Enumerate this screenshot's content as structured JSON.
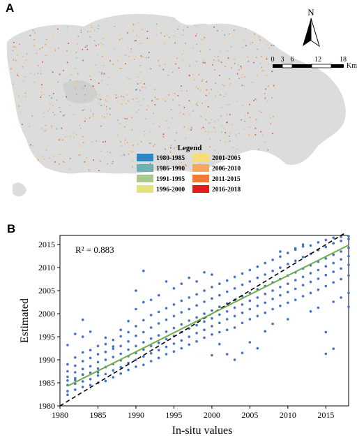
{
  "panels": {
    "a": {
      "label": "A",
      "legend_title": "Legend",
      "legend_items": [
        {
          "label": "1980-1985",
          "color": "#2e86c1"
        },
        {
          "label": "1986-1990",
          "color": "#6fb0b0"
        },
        {
          "label": "1991-1995",
          "color": "#a9c98d"
        },
        {
          "label": "1996-2000",
          "color": "#e2e27f"
        },
        {
          "label": "2001-2005",
          "color": "#f7dd73"
        },
        {
          "label": "2006-2010",
          "color": "#f5a95a"
        },
        {
          "label": "2011-2015",
          "color": "#f07a37"
        },
        {
          "label": "2016-2018",
          "color": "#e31a1c"
        }
      ],
      "north_label": "N",
      "scale_ticks": [
        "0",
        "3",
        "6",
        "12",
        "18"
      ],
      "scale_unit": "Km",
      "region_color": "#dcdcdc"
    },
    "b": {
      "label": "B"
    }
  },
  "chart_data": {
    "type": "scatter",
    "xlabel": "In-situ values",
    "ylabel": "Estimated",
    "xlim": [
      1980,
      2018
    ],
    "ylim": [
      1980,
      2017
    ],
    "x_ticks": [
      1980,
      1985,
      1990,
      1995,
      2000,
      2005,
      2010,
      2015
    ],
    "y_ticks": [
      1980,
      1985,
      1990,
      1995,
      2000,
      2005,
      2010,
      2015
    ],
    "annotation": "R² = 0.883",
    "point_color": "#4472c4",
    "fit_line": {
      "x": [
        1981,
        2018
      ],
      "y": [
        1984.3,
        2014.9
      ],
      "color": "#70ad47"
    },
    "identity_line": {
      "x": [
        1980,
        2017.5
      ],
      "y": [
        1980,
        2017.5
      ]
    },
    "series": [
      {
        "values": [
          [
            1981,
            1985.5
          ],
          [
            1981,
            1986.3
          ],
          [
            1981,
            1984.5
          ],
          [
            1981,
            1983.2
          ],
          [
            1981,
            1982.4
          ],
          [
            1981,
            1987.5
          ],
          [
            1981,
            1989.0
          ],
          [
            1981,
            1993.2
          ],
          [
            1982,
            1986.0
          ],
          [
            1982,
            1987.3
          ],
          [
            1982,
            1984.8
          ],
          [
            1982,
            1983.5
          ],
          [
            1982,
            1988.7
          ],
          [
            1982,
            1990.5
          ],
          [
            1982,
            1995.6
          ],
          [
            1982,
            1985.6
          ],
          [
            1983,
            1986.8
          ],
          [
            1983,
            1988.0
          ],
          [
            1983,
            1985.3
          ],
          [
            1983,
            1984.1
          ],
          [
            1983,
            1989.7
          ],
          [
            1983,
            1991.6
          ],
          [
            1983,
            1998.7
          ],
          [
            1983,
            1995.0
          ],
          [
            1984,
            1987.2
          ],
          [
            1984,
            1988.6
          ],
          [
            1984,
            1985.8
          ],
          [
            1984,
            1990.4
          ],
          [
            1984,
            1992.1
          ],
          [
            1984,
            1996.1
          ],
          [
            1984,
            1984.5
          ],
          [
            1985,
            1988.1
          ],
          [
            1985,
            1989.5
          ],
          [
            1985,
            1986.6
          ],
          [
            1985,
            1991.2
          ],
          [
            1985,
            1993.0
          ],
          [
            1985,
            1985.0
          ],
          [
            1985,
            1987.3
          ],
          [
            1986,
            1988.4
          ],
          [
            1986,
            1990.0
          ],
          [
            1986,
            1986.9
          ],
          [
            1986,
            1991.7
          ],
          [
            1986,
            1993.4
          ],
          [
            1986,
            1994.8
          ],
          [
            1986,
            1985.4
          ],
          [
            1987,
            1989.1
          ],
          [
            1987,
            1990.6
          ],
          [
            1987,
            1987.7
          ],
          [
            1987,
            1992.4
          ],
          [
            1987,
            1994.3
          ],
          [
            1987,
            1986.2
          ],
          [
            1987,
            1992.9
          ],
          [
            1988,
            1989.9
          ],
          [
            1988,
            1991.3
          ],
          [
            1988,
            1988.4
          ],
          [
            1988,
            1993.0
          ],
          [
            1988,
            1995.1
          ],
          [
            1988,
            1987.0
          ],
          [
            1988,
            1996.5
          ],
          [
            1989,
            1990.8
          ],
          [
            1989,
            1992.2
          ],
          [
            1989,
            1989.3
          ],
          [
            1989,
            1994.0
          ],
          [
            1989,
            1996.0
          ],
          [
            1989,
            1987.8
          ],
          [
            1989,
            1998.4
          ],
          [
            1990,
            1991.5
          ],
          [
            1990,
            1993.0
          ],
          [
            1990,
            1990.0
          ],
          [
            1990,
            1995.2
          ],
          [
            1990,
            1997.3
          ],
          [
            1990,
            1988.5
          ],
          [
            1990,
            2001.0
          ],
          [
            1990,
            2005.0
          ],
          [
            1991,
            1992.2
          ],
          [
            1991,
            1993.8
          ],
          [
            1991,
            1990.7
          ],
          [
            1991,
            1996.0
          ],
          [
            1991,
            1998.6
          ],
          [
            1991,
            1988.9
          ],
          [
            1991,
            2009.3
          ],
          [
            1991,
            2002.5
          ],
          [
            1992,
            1993.0
          ],
          [
            1992,
            1994.6
          ],
          [
            1992,
            1991.4
          ],
          [
            1992,
            1997.0
          ],
          [
            1992,
            1999.7
          ],
          [
            1992,
            1989.7
          ],
          [
            1992,
            2003.0
          ],
          [
            1993,
            1993.7
          ],
          [
            1993,
            1995.3
          ],
          [
            1993,
            1992.1
          ],
          [
            1993,
            1997.9
          ],
          [
            1993,
            2000.4
          ],
          [
            1993,
            1990.4
          ],
          [
            1993,
            2004.0
          ],
          [
            1994,
            1994.5
          ],
          [
            1994,
            1996.1
          ],
          [
            1994,
            1992.8
          ],
          [
            1994,
            1998.7
          ],
          [
            1994,
            2001.2
          ],
          [
            1994,
            1991.2
          ],
          [
            1994,
            2007.0
          ],
          [
            1995,
            1995.2
          ],
          [
            1995,
            1996.9
          ],
          [
            1995,
            1993.5
          ],
          [
            1995,
            1999.5
          ],
          [
            1995,
            2002.0
          ],
          [
            1995,
            1991.8
          ],
          [
            1995,
            2005.5
          ],
          [
            1996,
            1996.0
          ],
          [
            1996,
            1997.7
          ],
          [
            1996,
            1994.2
          ],
          [
            1996,
            2000.3
          ],
          [
            1996,
            2002.8
          ],
          [
            1996,
            1992.5
          ],
          [
            1996,
            2006.5
          ],
          [
            1997,
            1996.8
          ],
          [
            1997,
            1998.5
          ],
          [
            1997,
            1995.0
          ],
          [
            1997,
            2001.0
          ],
          [
            1997,
            2003.5
          ],
          [
            1997,
            1993.3
          ],
          [
            1997,
            2007.8
          ],
          [
            1998,
            1997.5
          ],
          [
            1998,
            1999.2
          ],
          [
            1998,
            1995.8
          ],
          [
            1998,
            2001.8
          ],
          [
            1998,
            2004.2
          ],
          [
            1998,
            1994.0
          ],
          [
            1998,
            2007.0
          ],
          [
            1999,
            1998.3
          ],
          [
            1999,
            2000.0
          ],
          [
            1999,
            1996.5
          ],
          [
            1999,
            2002.6
          ],
          [
            1999,
            2005.0
          ],
          [
            1999,
            1994.8
          ],
          [
            1999,
            2009.0
          ],
          [
            2000,
            1999.0
          ],
          [
            2000,
            2000.7
          ],
          [
            2000,
            1997.3
          ],
          [
            2000,
            2003.3
          ],
          [
            2000,
            2005.8
          ],
          [
            2000,
            1995.5
          ],
          [
            2000,
            2008.5
          ],
          [
            2000,
            1991.0
          ],
          [
            2001,
            1999.8
          ],
          [
            2001,
            2001.5
          ],
          [
            2001,
            1998.0
          ],
          [
            2001,
            2004.0
          ],
          [
            2001,
            2006.5
          ],
          [
            2001,
            1996.0
          ],
          [
            2001,
            1993.4
          ],
          [
            2002,
            2000.5
          ],
          [
            2002,
            2002.2
          ],
          [
            2002,
            1998.8
          ],
          [
            2002,
            2004.8
          ],
          [
            2002,
            2007.2
          ],
          [
            2002,
            1996.5
          ],
          [
            2002,
            1991.2
          ],
          [
            2003,
            2001.3
          ],
          [
            2003,
            2003.0
          ],
          [
            2003,
            1999.5
          ],
          [
            2003,
            2005.5
          ],
          [
            2003,
            2008.0
          ],
          [
            2003,
            1997.0
          ],
          [
            2003,
            1990.0
          ],
          [
            2004,
            2002.0
          ],
          [
            2004,
            2003.8
          ],
          [
            2004,
            2000.2
          ],
          [
            2004,
            2006.3
          ],
          [
            2004,
            2008.7
          ],
          [
            2004,
            1998.0
          ],
          [
            2004,
            1991.5
          ],
          [
            2005,
            2002.8
          ],
          [
            2005,
            2004.5
          ],
          [
            2005,
            2001.0
          ],
          [
            2005,
            2007.0
          ],
          [
            2005,
            2009.5
          ],
          [
            2005,
            1998.8
          ],
          [
            2005,
            1993.8
          ],
          [
            2006,
            2003.5
          ],
          [
            2006,
            2005.3
          ],
          [
            2006,
            2001.7
          ],
          [
            2006,
            2007.8
          ],
          [
            2006,
            2010.2
          ],
          [
            2006,
            1999.5
          ],
          [
            2006,
            1992.5
          ],
          [
            2007,
            2004.3
          ],
          [
            2007,
            2006.0
          ],
          [
            2007,
            2002.4
          ],
          [
            2007,
            2008.5
          ],
          [
            2007,
            2011.0
          ],
          [
            2007,
            2000.2
          ],
          [
            2007,
            1996.2
          ],
          [
            2008,
            2005.0
          ],
          [
            2008,
            2006.8
          ],
          [
            2008,
            2003.2
          ],
          [
            2008,
            2009.3
          ],
          [
            2008,
            2011.7
          ],
          [
            2008,
            2001.0
          ],
          [
            2008,
            1997.8
          ],
          [
            2009,
            2005.8
          ],
          [
            2009,
            2007.5
          ],
          [
            2009,
            2004.0
          ],
          [
            2009,
            2010.0
          ],
          [
            2009,
            2012.4
          ],
          [
            2009,
            2001.7
          ],
          [
            2009,
            2013.5
          ],
          [
            2010,
            2006.5
          ],
          [
            2010,
            2008.3
          ],
          [
            2010,
            2004.7
          ],
          [
            2010,
            2010.8
          ],
          [
            2010,
            2013.2
          ],
          [
            2010,
            2002.4
          ],
          [
            2010,
            1998.8
          ],
          [
            2011,
            2007.3
          ],
          [
            2011,
            2009.0
          ],
          [
            2011,
            2005.4
          ],
          [
            2011,
            2011.5
          ],
          [
            2011,
            2013.9
          ],
          [
            2011,
            2003.0
          ],
          [
            2011,
            2014.2
          ],
          [
            2012,
            2008.0
          ],
          [
            2012,
            2009.8
          ],
          [
            2012,
            2006.2
          ],
          [
            2012,
            2012.3
          ],
          [
            2012,
            2014.6
          ],
          [
            2012,
            2003.8
          ],
          [
            2012,
            2015.0
          ],
          [
            2013,
            2008.8
          ],
          [
            2013,
            2010.5
          ],
          [
            2013,
            2006.9
          ],
          [
            2013,
            2013.0
          ],
          [
            2013,
            2014.8
          ],
          [
            2013,
            2004.5
          ],
          [
            2013,
            2000.5
          ],
          [
            2014,
            2009.5
          ],
          [
            2014,
            2011.3
          ],
          [
            2014,
            2007.6
          ],
          [
            2014,
            2013.8
          ],
          [
            2014,
            2015.5
          ],
          [
            2014,
            2005.2
          ],
          [
            2014,
            2001.3
          ],
          [
            2015,
            2010.3
          ],
          [
            2015,
            2012.0
          ],
          [
            2015,
            2008.4
          ],
          [
            2015,
            2014.5
          ],
          [
            2015,
            2016.0
          ],
          [
            2015,
            2006.0
          ],
          [
            2015,
            1991.3
          ],
          [
            2015,
            1996.0
          ],
          [
            2016,
            2011.0
          ],
          [
            2016,
            2012.8
          ],
          [
            2016,
            2009.1
          ],
          [
            2016,
            2015.3
          ],
          [
            2016,
            2016.5
          ],
          [
            2016,
            2006.8
          ],
          [
            2016,
            1992.4
          ],
          [
            2016,
            2002.6
          ],
          [
            2017,
            2011.8
          ],
          [
            2017,
            2013.5
          ],
          [
            2017,
            2009.8
          ],
          [
            2017,
            2015.8
          ],
          [
            2017,
            2016.7
          ],
          [
            2017,
            2007.5
          ],
          [
            2017,
            2003.5
          ],
          [
            2018,
            2012.5
          ],
          [
            2018,
            2014.3
          ],
          [
            2018,
            2010.6
          ],
          [
            2018,
            2016.2
          ],
          [
            2018,
            2016.8
          ],
          [
            2018,
            2008.3
          ],
          [
            2018,
            2004.5
          ],
          [
            2018,
            2001.5
          ]
        ]
      }
    ]
  }
}
